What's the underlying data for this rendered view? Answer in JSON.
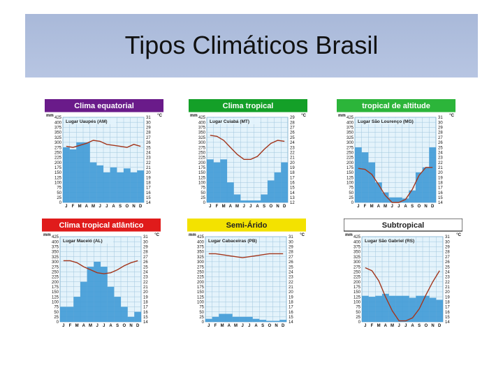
{
  "slide": {
    "title": "Tipos Climáticos Brasil"
  },
  "chart_data": [
    {
      "type": "bar",
      "title": "Clima equatorial",
      "banner_bg": "#6a1b8a",
      "banner_fg": "#ffffff",
      "location": "Lugar Uaupés (AM)",
      "left_unit": "mm",
      "right_unit": "°C",
      "left_ticks": [
        "425",
        "400",
        "375",
        "350",
        "325",
        "300",
        "275",
        "250",
        "225",
        "200",
        "175",
        "150",
        "125",
        "100",
        "75",
        "50",
        "25",
        "0"
      ],
      "right_ticks": [
        "31",
        "30",
        "29",
        "28",
        "27",
        "26",
        "25",
        "24",
        "23",
        "22",
        "21",
        "20",
        "19",
        "18",
        "17",
        "16",
        "15",
        "14"
      ],
      "categories": [
        "J",
        "F",
        "M",
        "A",
        "M",
        "J",
        "J",
        "A",
        "S",
        "O",
        "N",
        "D"
      ],
      "precipitation_mm": [
        275,
        265,
        300,
        300,
        200,
        185,
        150,
        175,
        150,
        170,
        150,
        160
      ],
      "temperature_c": [
        25.2,
        25.0,
        25.4,
        25.8,
        26.4,
        26.2,
        25.6,
        25.4,
        25.2,
        25.0,
        25.6,
        25.2
      ]
    },
    {
      "type": "bar",
      "title": "Clima tropical",
      "banner_bg": "#14a028",
      "banner_fg": "#ffffff",
      "location": "Lugar Cuiabá (MT)",
      "left_unit": "mm",
      "right_unit": "°C",
      "left_ticks": [
        "425",
        "400",
        "375",
        "350",
        "325",
        "300",
        "275",
        "250",
        "225",
        "200",
        "175",
        "150",
        "125",
        "100",
        "75",
        "50",
        "25",
        "0"
      ],
      "right_ticks": [
        "29",
        "28",
        "27",
        "26",
        "25",
        "24",
        "23",
        "22",
        "21",
        "20",
        "19",
        "18",
        "17",
        "16",
        "15",
        "14",
        "13",
        "12"
      ],
      "categories": [
        "J",
        "F",
        "M",
        "A",
        "M",
        "J",
        "J",
        "A",
        "S",
        "O",
        "N",
        "D"
      ],
      "precipitation_mm": [
        215,
        200,
        215,
        100,
        40,
        10,
        10,
        10,
        40,
        110,
        150,
        200
      ],
      "temperature_c": [
        25.4,
        25.2,
        24.4,
        23.0,
        21.6,
        20.6,
        20.6,
        21.2,
        22.6,
        23.8,
        24.4,
        24.2
      ]
    },
    {
      "type": "bar",
      "title": "tropical de altitude",
      "banner_bg": "#2cb53a",
      "banner_fg": "#ffffff",
      "location": "Lugar São Lourenço (MG)",
      "left_unit": "mm",
      "right_unit": "°C",
      "left_ticks": [
        "425",
        "400",
        "375",
        "350",
        "325",
        "300",
        "275",
        "250",
        "225",
        "200",
        "175",
        "150",
        "125",
        "100",
        "75",
        "50",
        "25",
        "0"
      ],
      "right_ticks": [
        "31",
        "30",
        "29",
        "28",
        "27",
        "26",
        "25",
        "24",
        "23",
        "22",
        "21",
        "20",
        "19",
        "18",
        "17",
        "16",
        "15",
        "14"
      ],
      "categories": [
        "J",
        "F",
        "M",
        "A",
        "M",
        "J",
        "J",
        "A",
        "S",
        "O",
        "N",
        "D"
      ],
      "precipitation_mm": [
        275,
        250,
        200,
        100,
        50,
        25,
        25,
        20,
        60,
        150,
        175,
        275
      ],
      "temperature_c": [
        20.8,
        20.6,
        19.6,
        17.6,
        15.4,
        14.0,
        14.0,
        14.6,
        16.6,
        19.4,
        21.0,
        21.0
      ]
    },
    {
      "type": "bar",
      "title": "Clima tropical atlântico",
      "banner_bg": "#e01b1b",
      "banner_fg": "#ffffff",
      "location": "Lugar Maceió (AL)",
      "left_unit": "mm",
      "right_unit": "°C",
      "left_ticks": [
        "425",
        "400",
        "375",
        "350",
        "325",
        "300",
        "275",
        "250",
        "225",
        "200",
        "175",
        "150",
        "125",
        "100",
        "75",
        "50",
        "25",
        "0"
      ],
      "right_ticks": [
        "31",
        "30",
        "29",
        "28",
        "27",
        "26",
        "25",
        "24",
        "23",
        "22",
        "21",
        "20",
        "19",
        "18",
        "17",
        "16",
        "15",
        "14"
      ],
      "categories": [
        "J",
        "F",
        "M",
        "A",
        "M",
        "J",
        "J",
        "A",
        "S",
        "O",
        "N",
        "D"
      ],
      "precipitation_mm": [
        75,
        75,
        125,
        200,
        275,
        300,
        275,
        175,
        125,
        75,
        25,
        50
      ],
      "temperature_c": [
        26.2,
        26.2,
        25.8,
        25.0,
        24.4,
        23.8,
        23.6,
        23.8,
        24.4,
        25.2,
        25.8,
        26.2
      ]
    },
    {
      "type": "bar",
      "title": "Semi-Árido",
      "banner_bg": "#f3e200",
      "banner_fg": "#222222",
      "location": "Lugar Cabaceiras (PB)",
      "left_unit": "mm",
      "right_unit": "°C",
      "left_ticks": [
        "425",
        "400",
        "375",
        "350",
        "325",
        "300",
        "275",
        "250",
        "225",
        "200",
        "175",
        "150",
        "125",
        "100",
        "75",
        "50",
        "25",
        "0"
      ],
      "right_ticks": [
        "31",
        "30",
        "29",
        "28",
        "27",
        "26",
        "25",
        "24",
        "23",
        "22",
        "21",
        "20",
        "19",
        "18",
        "17",
        "16",
        "15",
        "14"
      ],
      "categories": [
        "J",
        "F",
        "M",
        "A",
        "M",
        "J",
        "J",
        "A",
        "S",
        "O",
        "N",
        "D"
      ],
      "precipitation_mm": [
        15,
        25,
        40,
        40,
        25,
        25,
        25,
        15,
        10,
        5,
        5,
        10
      ],
      "temperature_c": [
        27.6,
        27.6,
        27.4,
        27.2,
        27.0,
        26.8,
        27.0,
        27.2,
        27.4,
        27.6,
        27.6,
        27.6
      ]
    },
    {
      "type": "bar",
      "title": "Subtropical",
      "banner_bg": "#ffffff",
      "banner_fg": "#222222",
      "location": "Lugar São Gabriel (RS)",
      "left_unit": "mm",
      "right_unit": "°C",
      "left_ticks": [
        "425",
        "400",
        "375",
        "350",
        "325",
        "300",
        "275",
        "250",
        "225",
        "200",
        "175",
        "150",
        "125",
        "100",
        "75",
        "50",
        "25",
        "0"
      ],
      "right_ticks": [
        "31",
        "30",
        "29",
        "28",
        "27",
        "26",
        "25",
        "24",
        "23",
        "22",
        "21",
        "20",
        "19",
        "18",
        "17",
        "16",
        "15",
        "14"
      ],
      "categories": [
        "J",
        "F",
        "M",
        "A",
        "M",
        "J",
        "J",
        "A",
        "S",
        "O",
        "N",
        "D"
      ],
      "precipitation_mm": [
        130,
        125,
        130,
        140,
        130,
        130,
        130,
        120,
        130,
        130,
        120,
        110
      ],
      "temperature_c": [
        24.8,
        24.2,
        22.2,
        19.0,
        16.2,
        14.2,
        14.2,
        14.8,
        16.6,
        19.4,
        22.0,
        24.2
      ]
    }
  ]
}
